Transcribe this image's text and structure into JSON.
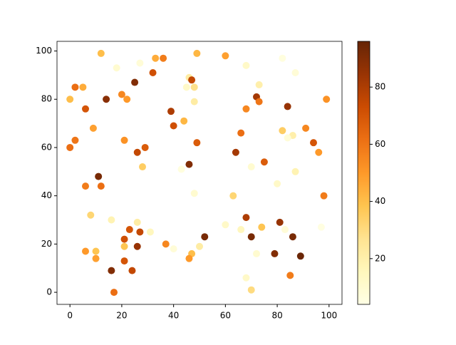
{
  "chart_data": {
    "type": "scatter",
    "colormap": "YlOrBr",
    "x": [
      12,
      18,
      27,
      33,
      36,
      49,
      60,
      68,
      82,
      87,
      0,
      2,
      5,
      6,
      14,
      20,
      22,
      25,
      32,
      46,
      47,
      48,
      45,
      48,
      39,
      40,
      44,
      73,
      72,
      73,
      68,
      84,
      99,
      0,
      2,
      9,
      21,
      26,
      29,
      28,
      49,
      46,
      43,
      66,
      64,
      70,
      75,
      82,
      86,
      84,
      91,
      94,
      96,
      87,
      80,
      11,
      6,
      12,
      48,
      63,
      8,
      16,
      26,
      23,
      27,
      21,
      21,
      26,
      31,
      37,
      40,
      52,
      50,
      47,
      46,
      6,
      10,
      10,
      21,
      16,
      24,
      17,
      60,
      66,
      68,
      70,
      74,
      72,
      68,
      70,
      81,
      83,
      86,
      79,
      89,
      85,
      98,
      97
    ],
    "y": [
      99,
      93,
      95,
      97,
      97,
      99,
      98,
      94,
      97,
      91,
      80,
      85,
      85,
      76,
      80,
      82,
      80,
      87,
      91,
      89,
      88,
      85,
      85,
      79,
      75,
      69,
      71,
      86,
      81,
      79,
      76,
      77,
      80,
      60,
      63,
      68,
      63,
      58,
      60,
      52,
      62,
      53,
      51,
      66,
      58,
      52,
      54,
      67,
      65,
      64,
      68,
      62,
      58,
      50,
      45,
      48,
      44,
      44,
      41,
      40,
      32,
      30,
      29,
      26,
      25,
      22,
      19,
      19,
      25,
      20,
      18,
      23,
      19,
      16,
      14,
      17,
      17,
      14,
      13,
      9,
      9,
      0,
      28,
      26,
      31,
      23,
      27,
      16,
      6,
      1,
      29,
      26,
      23,
      16,
      15,
      7,
      40,
      27
    ],
    "c": [
      40,
      10,
      8,
      45,
      58,
      42,
      48,
      12,
      6,
      8,
      40,
      62,
      45,
      70,
      88,
      55,
      50,
      90,
      72,
      22,
      75,
      28,
      12,
      22,
      80,
      72,
      42,
      20,
      82,
      60,
      55,
      85,
      52,
      62,
      60,
      48,
      52,
      75,
      68,
      35,
      68,
      90,
      6,
      62,
      82,
      10,
      68,
      35,
      20,
      8,
      55,
      70,
      50,
      18,
      12,
      92,
      58,
      62,
      10,
      32,
      32,
      18,
      22,
      70,
      75,
      72,
      38,
      85,
      15,
      55,
      8,
      92,
      22,
      40,
      50,
      50,
      38,
      48,
      70,
      90,
      75,
      62,
      12,
      15,
      80,
      92,
      38,
      10,
      12,
      30,
      85,
      8,
      92,
      90,
      95,
      58,
      58,
      5
    ],
    "xlim": [
      -5,
      105
    ],
    "ylim": [
      -5,
      104
    ],
    "xticks": [
      0,
      20,
      40,
      60,
      80,
      100
    ],
    "yticks": [
      0,
      20,
      40,
      60,
      80,
      100
    ],
    "clim": [
      4,
      96
    ],
    "cticks": [
      20,
      40,
      60,
      80
    ]
  }
}
